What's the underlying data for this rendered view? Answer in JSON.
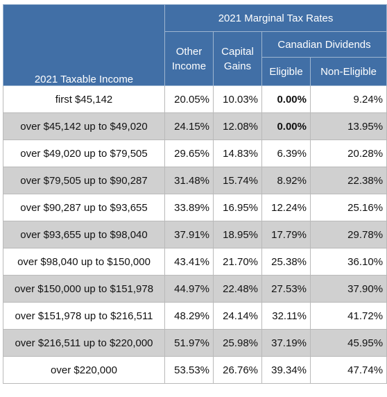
{
  "header": {
    "group_title": "2021 Marginal Tax Rates",
    "income_col": "2021 Taxable Income",
    "other_income_line1": "Other",
    "other_income_line2": "Income",
    "capital_gains_line1": "Capital",
    "capital_gains_line2": "Gains",
    "dividends_group": "Canadian Dividends",
    "eligible": "Eligible",
    "non_eligible": "Non-Eligible"
  },
  "colors": {
    "header_bg": "#416fa6",
    "header_text": "#ffffff",
    "shaded_row": "#d0d0d0",
    "plain_row": "#ffffff"
  },
  "rows": [
    {
      "income": "first $45,142",
      "other": "20.05%",
      "capital": "10.03%",
      "eligible": "0.00%",
      "non_eligible": "9.24%"
    },
    {
      "income": "over $45,142 up to $49,020",
      "other": "24.15%",
      "capital": "12.08%",
      "eligible": "0.00%",
      "non_eligible": "13.95%"
    },
    {
      "income": "over $49,020 up to $79,505",
      "other": "29.65%",
      "capital": "14.83%",
      "eligible": "6.39%",
      "non_eligible": "20.28%"
    },
    {
      "income": "over $79,505 up to $90,287",
      "other": "31.48%",
      "capital": "15.74%",
      "eligible": "8.92%",
      "non_eligible": "22.38%"
    },
    {
      "income": "over $90,287 up to $93,655",
      "other": "33.89%",
      "capital": "16.95%",
      "eligible": "12.24%",
      "non_eligible": "25.16%"
    },
    {
      "income": "over $93,655 up to $98,040",
      "other": "37.91%",
      "capital": "18.95%",
      "eligible": "17.79%",
      "non_eligible": "29.78%"
    },
    {
      "income": "over $98,040 up to $150,000",
      "other": "43.41%",
      "capital": "21.70%",
      "eligible": "25.38%",
      "non_eligible": "36.10%"
    },
    {
      "income": "over $150,000 up to $151,978",
      "other": "44.97%",
      "capital": "22.48%",
      "eligible": "27.53%",
      "non_eligible": "37.90%"
    },
    {
      "income": "over $151,978 up to $216,511",
      "other": "48.29%",
      "capital": "24.14%",
      "eligible": "32.11%",
      "non_eligible": "41.72%"
    },
    {
      "income": "over $216,511 up to $220,000",
      "other": "51.97%",
      "capital": "25.98%",
      "eligible": "37.19%",
      "non_eligible": "45.95%"
    },
    {
      "income": "over $220,000",
      "other": "53.53%",
      "capital": "26.76%",
      "eligible": "39.34%",
      "non_eligible": "47.74%"
    }
  ]
}
